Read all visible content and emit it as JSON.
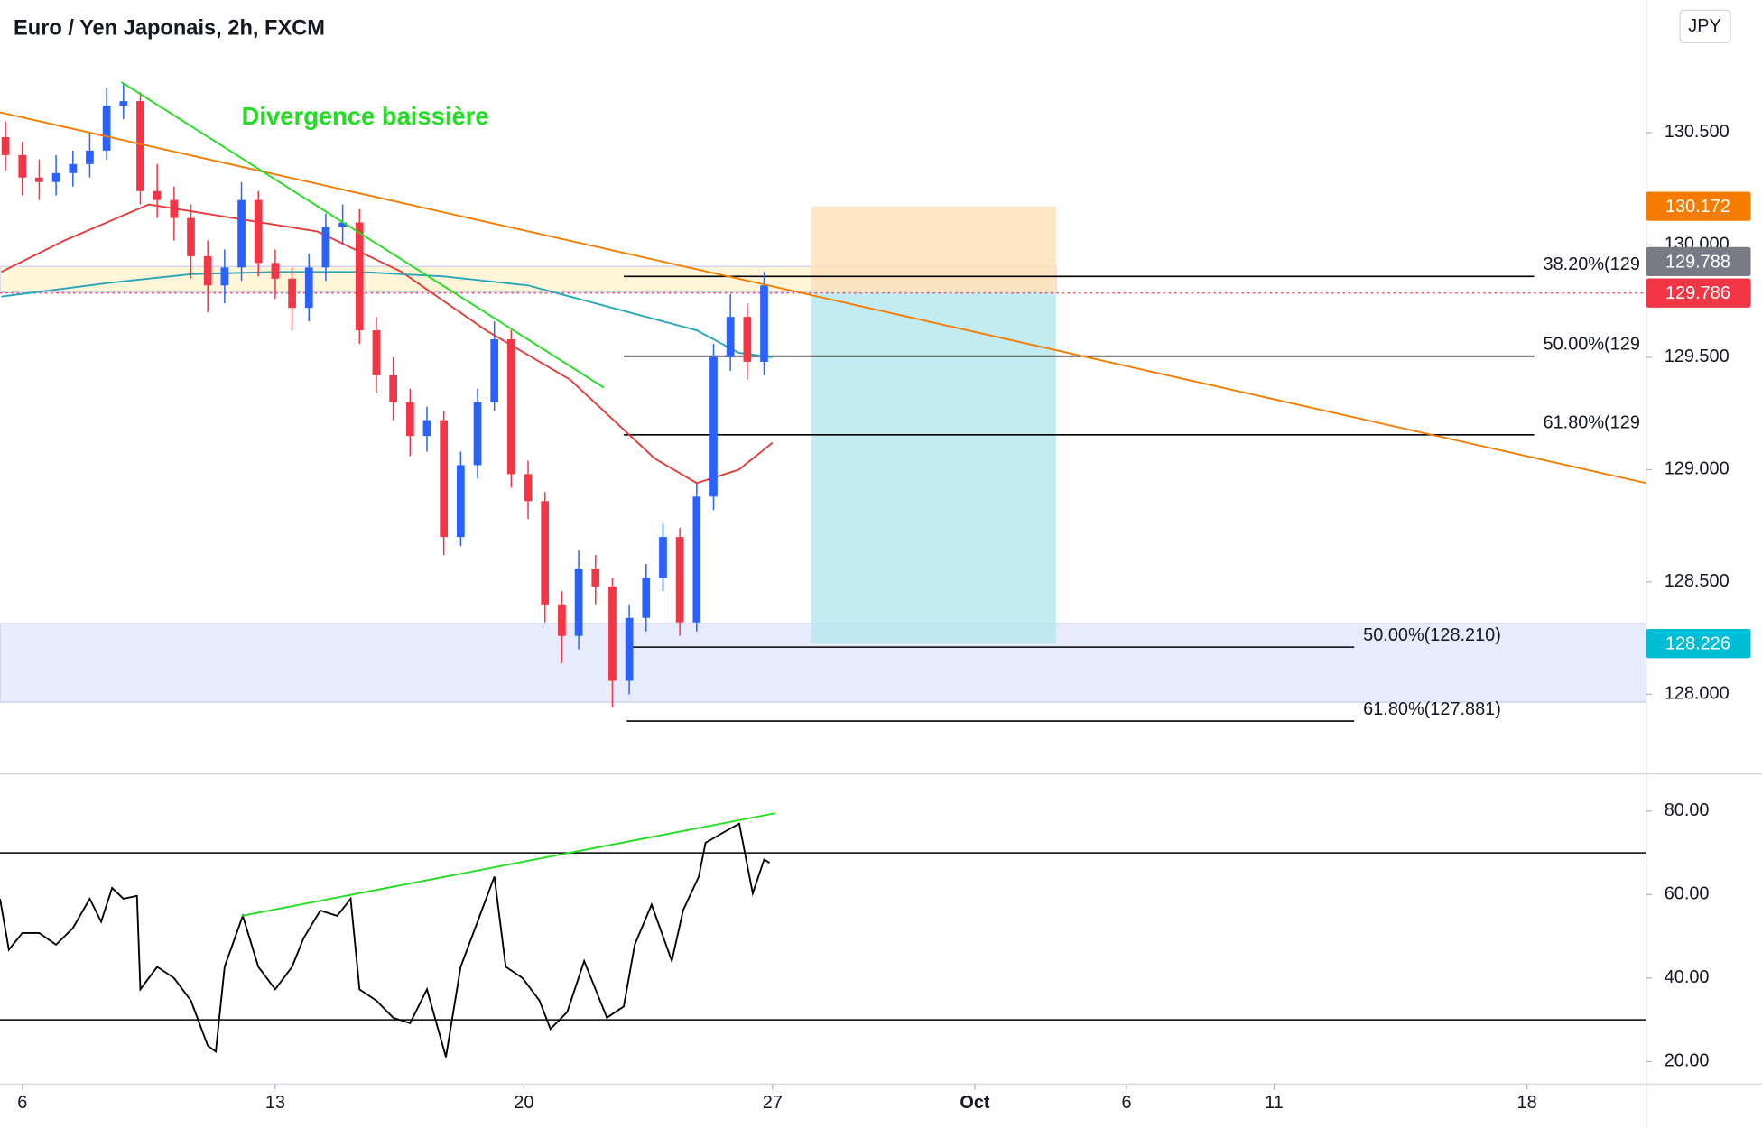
{
  "chart_data": [
    {
      "type": "candlestick",
      "title": "Euro / Yen Japonais, 2h, FXCM",
      "currency": "JPY",
      "xlim": [
        -5.3,
        385.3
      ],
      "ylim": [
        127.65,
        131.09
      ],
      "yticks": [
        {
          "value": 128,
          "label": "128.000"
        },
        {
          "value": 128.5,
          "label": "128.500"
        },
        {
          "value": 129,
          "label": "129.000"
        },
        {
          "value": 129.5,
          "label": "129.500"
        },
        {
          "value": 130,
          "label": "130.000"
        },
        {
          "value": 130.5,
          "label": "130.500"
        }
      ],
      "candles": {
        "x": [
          -4,
          0,
          4,
          8,
          12,
          16,
          20,
          24,
          28,
          32,
          36,
          40,
          44,
          48,
          52,
          56,
          60,
          64,
          68,
          72,
          76,
          80,
          84,
          88,
          92,
          96,
          100,
          104,
          108,
          112,
          116,
          120,
          124,
          128,
          132,
          136,
          140,
          144,
          148,
          152,
          156,
          160,
          164,
          168,
          172,
          176
        ],
        "open": [
          130.48,
          130.4,
          130.3,
          130.28,
          130.32,
          130.36,
          130.42,
          130.62,
          130.64,
          130.24,
          130.2,
          130.12,
          129.95,
          129.82,
          129.9,
          130.2,
          129.92,
          129.85,
          129.72,
          129.9,
          130.08,
          130.1,
          129.62,
          129.42,
          129.3,
          129.15,
          129.22,
          128.7,
          129.02,
          129.3,
          129.58,
          128.98,
          128.86,
          128.4,
          128.26,
          128.56,
          128.48,
          128.06,
          128.34,
          128.52,
          128.7,
          128.32,
          128.88,
          129.5,
          129.68,
          129.48
        ],
        "high": [
          130.55,
          130.46,
          130.38,
          130.4,
          130.42,
          130.5,
          130.7,
          130.72,
          130.68,
          130.36,
          130.26,
          130.18,
          130.02,
          129.98,
          130.28,
          130.24,
          129.98,
          129.9,
          129.96,
          130.14,
          130.18,
          130.16,
          129.68,
          129.5,
          129.36,
          129.28,
          129.26,
          129.08,
          129.36,
          129.66,
          129.62,
          129.04,
          128.9,
          128.46,
          128.64,
          128.62,
          128.52,
          128.4,
          128.58,
          128.76,
          128.74,
          128.94,
          129.56,
          129.78,
          129.74,
          129.88
        ],
        "low": [
          130.33,
          130.22,
          130.2,
          130.22,
          130.26,
          130.3,
          130.38,
          130.56,
          130.18,
          130.12,
          130.02,
          129.85,
          129.7,
          129.74,
          129.84,
          129.86,
          129.76,
          129.62,
          129.66,
          129.84,
          130.0,
          129.56,
          129.34,
          129.22,
          129.06,
          129.08,
          128.62,
          128.66,
          128.96,
          129.26,
          128.92,
          128.78,
          128.32,
          128.14,
          128.2,
          128.4,
          127.94,
          128.0,
          128.28,
          128.46,
          128.26,
          128.28,
          128.82,
          129.44,
          129.4,
          129.42
        ],
        "close": [
          130.4,
          130.3,
          130.28,
          130.32,
          130.36,
          130.42,
          130.62,
          130.64,
          130.24,
          130.2,
          130.12,
          129.95,
          129.82,
          129.9,
          130.2,
          129.92,
          129.85,
          129.72,
          129.9,
          130.08,
          130.1,
          129.62,
          129.42,
          129.3,
          129.15,
          129.22,
          128.7,
          129.02,
          129.3,
          129.58,
          128.98,
          128.86,
          128.4,
          128.26,
          128.56,
          128.48,
          128.06,
          128.34,
          128.52,
          128.7,
          128.32,
          128.88,
          129.5,
          129.68,
          129.48,
          129.82
        ]
      },
      "up_color": "#2962ff",
      "down_color": "#f23645",
      "series": [
        {
          "color": "#e53935",
          "x": [
            -5,
            10,
            30,
            50,
            70,
            90,
            110,
            130,
            150,
            160,
            170,
            178
          ],
          "values": [
            129.88,
            130.02,
            130.18,
            130.12,
            130.06,
            129.88,
            129.62,
            129.4,
            129.05,
            128.94,
            129.0,
            129.12
          ]
        },
        {
          "color": "#26a6b8",
          "x": [
            -5,
            20,
            40,
            60,
            80,
            100,
            120,
            140,
            160,
            170,
            178
          ],
          "values": [
            129.77,
            129.83,
            129.87,
            129.88,
            129.88,
            129.86,
            129.82,
            129.72,
            129.62,
            129.52,
            129.5
          ]
        }
      ],
      "trendlines": [
        {
          "color": "#f57c00",
          "x": [
            -5.3,
            385.3
          ],
          "y": [
            130.59,
            128.94
          ]
        },
        {
          "color": "#22dd22",
          "x": [
            23.5,
            138
          ],
          "y": [
            130.725,
            129.365
          ]
        }
      ],
      "annotation": {
        "text": "Divergence baissière",
        "color": "#22dd22"
      },
      "zones": [
        {
          "x": [
            -5.3,
            245.3
          ],
          "y": [
            129.79,
            129.905
          ],
          "color": "#fff6d9"
        },
        {
          "x": [
            -5.3,
            385.3
          ],
          "y": [
            127.965,
            128.315
          ],
          "color": "#e8ebfc"
        }
      ],
      "positions": [
        {
          "x": [
            187.2,
            245.3
          ],
          "y": [
            129.788,
            130.172
          ],
          "color": "#fde0bb"
        },
        {
          "x": [
            187.2,
            245.3
          ],
          "y": [
            128.226,
            129.788
          ],
          "color": "#b9e8f0"
        }
      ],
      "fib_levels": [
        {
          "value": 129.86,
          "label": "38.20%(129",
          "x": [
            142.7,
            358.7
          ]
        },
        {
          "value": 129.505,
          "label": "50.00%(129",
          "x": [
            142.7,
            358.7
          ]
        },
        {
          "value": 129.155,
          "label": "61.80%(129",
          "x": [
            142.7,
            358.7
          ]
        },
        {
          "value": 128.21,
          "label": "50.00%(128.210)",
          "x": [
            143.4,
            316
          ]
        },
        {
          "value": 127.881,
          "label": "61.80%(127.881)",
          "x": [
            143.4,
            316
          ]
        }
      ],
      "price_markers": [
        {
          "value": 130.172,
          "color": "#f57c00"
        },
        {
          "value": 129.788,
          "color": "#787b86"
        },
        {
          "value": 129.786,
          "color": "#f23645",
          "line": true
        },
        {
          "value": 128.226,
          "color": "#00bcd4"
        }
      ]
    },
    {
      "type": "line",
      "xlim": [
        -5.3,
        385.3
      ],
      "ylim": [
        14.6,
        88.6
      ],
      "yticks": [
        {
          "value": 20,
          "label": "20.00"
        },
        {
          "value": 40,
          "label": "40.00"
        },
        {
          "value": 60,
          "label": "60.00"
        },
        {
          "value": 80,
          "label": "80.00"
        }
      ],
      "levels": [
        70,
        30
      ],
      "series": [
        {
          "color": "#000000",
          "x": [
            -5.3,
            -3.2,
            0,
            4,
            8,
            12,
            16,
            18.7,
            21.3,
            24,
            27.2,
            28,
            32,
            36,
            40,
            44,
            45.9,
            48,
            52.3,
            56,
            60,
            64,
            66.7,
            70.7,
            74.7,
            77.9,
            80,
            84,
            88,
            92,
            96,
            100.5,
            104,
            108,
            112,
            114.7,
            118.7,
            122.7,
            125.3,
            129.3,
            133.3,
            138.7,
            142.7,
            145.3,
            149.3,
            154.1,
            156.8,
            160.5,
            162.1,
            166.7,
            170.1,
            172,
            173.3,
            176,
            177.3
          ],
          "values": [
            59,
            46.8,
            50.8,
            50.8,
            48,
            52,
            59,
            53.5,
            61.6,
            59,
            59.7,
            37.3,
            42.7,
            40,
            34.6,
            23.8,
            22.4,
            42.7,
            54.9,
            42.7,
            37.3,
            42.7,
            49.5,
            56.2,
            54.9,
            59,
            37.3,
            34.6,
            30.5,
            29.2,
            37.3,
            21.1,
            42.7,
            53.5,
            64.3,
            42.7,
            40,
            34.6,
            27.8,
            31.9,
            44.1,
            30.5,
            33.2,
            48,
            57.6,
            44.1,
            56.3,
            64.3,
            72.4,
            75.1,
            77,
            67,
            60.3,
            68.4,
            67.6
          ]
        }
      ],
      "trendlines": [
        {
          "color": "#22dd22",
          "x": [
            52,
            178.7
          ],
          "y": [
            54.9,
            79.5
          ]
        }
      ],
      "xticks": [
        {
          "value": 0,
          "label": "6"
        },
        {
          "value": 60,
          "label": "13"
        },
        {
          "value": 119,
          "label": "20"
        },
        {
          "value": 178,
          "label": "27"
        },
        {
          "value": 226,
          "label": "Oct"
        },
        {
          "value": 262,
          "label": "6"
        },
        {
          "value": 297,
          "label": "11"
        },
        {
          "value": 357,
          "label": "18"
        }
      ]
    }
  ]
}
